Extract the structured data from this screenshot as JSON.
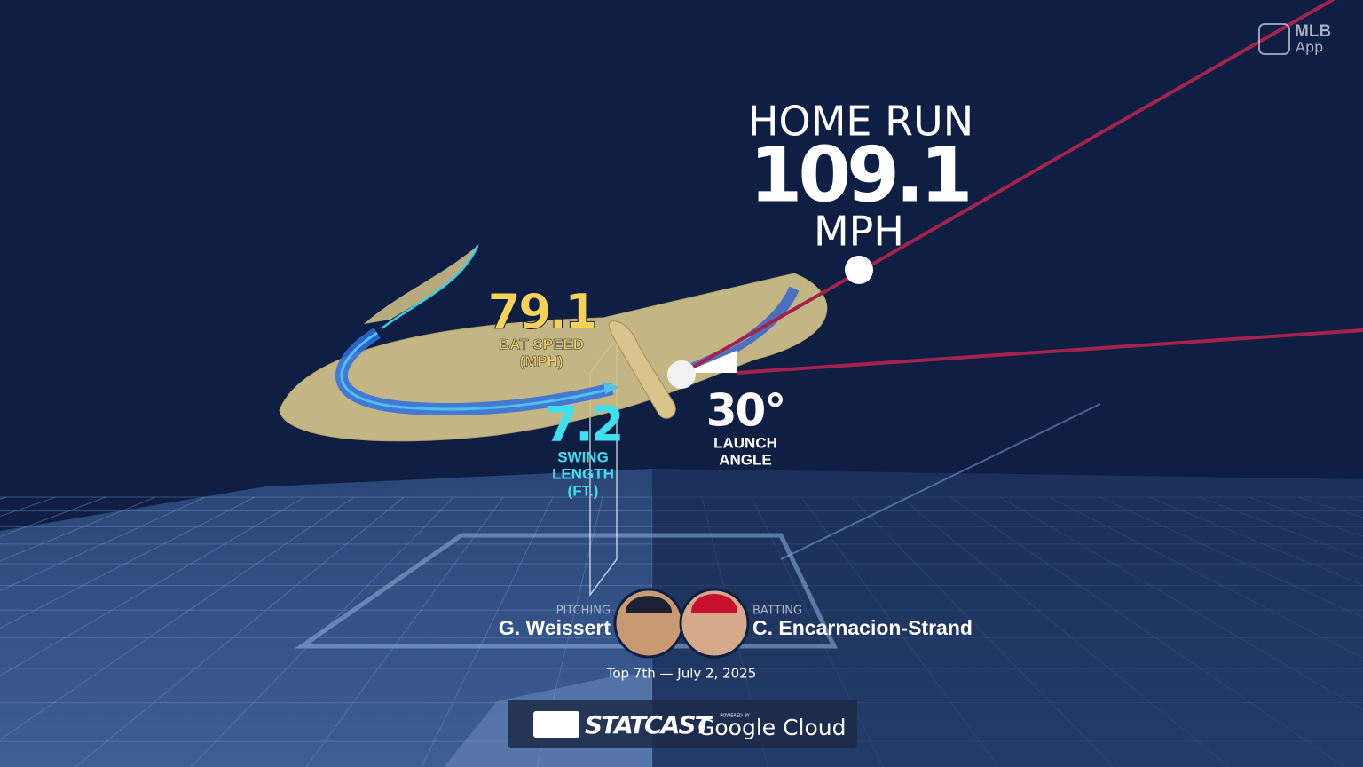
{
  "app_badge": {
    "line1": "MLB",
    "line2": "App"
  },
  "result": {
    "title": "HOME RUN",
    "exit_velocity": "109.1",
    "unit": "MPH"
  },
  "bat_speed": {
    "value": "79.1",
    "label1": "BAT SPEED",
    "label2": "(MPH)"
  },
  "swing_length": {
    "value": "7.2",
    "label1": "SWING",
    "label2": "LENGTH",
    "label3": "(FT.)"
  },
  "launch_angle": {
    "value": "30°",
    "label1": "LAUNCH",
    "label2": "ANGLE"
  },
  "pitcher": {
    "role": "PITCHING",
    "name": "G. Weissert"
  },
  "batter": {
    "role": "BATTING",
    "name": "C. Encarnacion-Strand"
  },
  "game_info": "Top 7th — July 2, 2025",
  "footer": {
    "brand": "STATCAST",
    "powered": "POWERED BY",
    "partner": "Google Cloud"
  }
}
